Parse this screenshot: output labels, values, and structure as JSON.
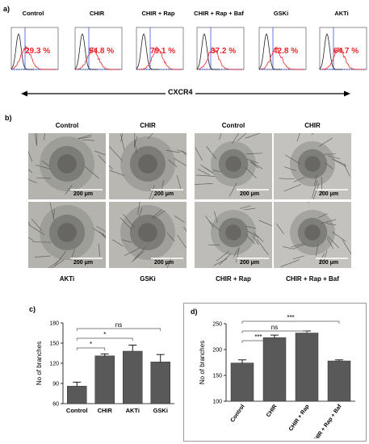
{
  "panel_a": {
    "letter": "a)",
    "plots": [
      {
        "title": "Control",
        "percent": "29.3 %"
      },
      {
        "title": "CHIR",
        "percent": "54.8 %"
      },
      {
        "title": "CHIR + Rap",
        "percent": "79.1 %"
      },
      {
        "title": "CHIR + Rap + Baf",
        "percent": "37.2 %"
      },
      {
        "title": "GSKi",
        "percent": "42.8 %"
      },
      {
        "title": "AKTi",
        "percent": "64.7 %"
      }
    ],
    "axis_label": "CXCR4",
    "colors": {
      "control_curve": "#222222",
      "treated_curve": "#e8242a",
      "gate": "#3d5bd9"
    }
  },
  "panel_b": {
    "letter": "b)",
    "top_labels": [
      "Control",
      "CHIR",
      "Control",
      "CHIR"
    ],
    "bottom_labels": [
      "AKTi",
      "GSKi",
      "CHIR + Rap",
      "CHIR + Rap + Baf"
    ],
    "scale_bar": "200 μm"
  },
  "chart_data": [
    {
      "type": "bar",
      "panel": "c)",
      "categories": [
        "Control",
        "CHIR",
        "AKTi",
        "GSKi"
      ],
      "values": [
        86,
        131,
        138,
        122
      ],
      "errors": [
        6,
        3,
        9,
        11
      ],
      "ylabel": "No of branches",
      "ylim": [
        60,
        180
      ],
      "yticks": [
        60,
        90,
        120,
        150,
        180
      ],
      "significance": [
        {
          "from": "Control",
          "to": "CHIR",
          "label": "*"
        },
        {
          "from": "Control",
          "to": "AKTi",
          "label": "*"
        },
        {
          "from": "Control",
          "to": "GSKi",
          "label": "ns"
        }
      ],
      "bar_color": "#595959"
    },
    {
      "type": "bar",
      "panel": "d)",
      "categories": [
        "Control",
        "CHIR",
        "CHIR + Rap",
        "CHIR + Rap + Baf"
      ],
      "values": [
        174,
        223,
        232,
        178
      ],
      "errors": [
        6,
        5,
        4,
        2
      ],
      "ylabel": "No of branches",
      "ylim": [
        100,
        250
      ],
      "yticks": [
        100,
        150,
        200,
        250
      ],
      "significance": [
        {
          "from": "Control",
          "to": "CHIR",
          "label": "***"
        },
        {
          "from": "Control",
          "to": "CHIR + Rap",
          "label": "ns"
        },
        {
          "from": "Control",
          "to": "CHIR + Rap + Baf",
          "label": "***"
        }
      ],
      "bar_color": "#595959"
    }
  ]
}
